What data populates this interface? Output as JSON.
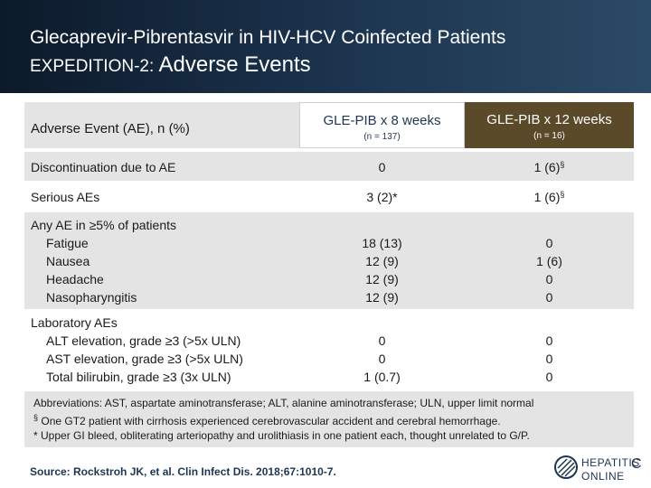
{
  "header": {
    "title": "Glecaprevir-Pibrentasvir in HIV-HCV Coinfected Patients",
    "subtitle_prefix": "EXPEDITION-2: ",
    "subtitle_main": "Adverse Events"
  },
  "table": {
    "row_header": "Adverse Event (AE), n (%)",
    "columns": [
      {
        "title": "GLE-PIB x 8 weeks",
        "n": "(n = 137)"
      },
      {
        "title": "GLE-PIB x 12 weeks",
        "n": "(n = 16)"
      }
    ],
    "discontinuation": {
      "label": "Discontinuation due to AE",
      "v8": "0",
      "v12": "1 (6)",
      "v12_mark": "§"
    },
    "serious": {
      "label": "Serious AEs",
      "v8": "3 (2)*",
      "v12": "1 (6)",
      "v12_mark": "§"
    },
    "any_ae": {
      "label": "Any AE in ≥5% of patients",
      "items": [
        {
          "label": "Fatigue",
          "v8": "18 (13)",
          "v12": "0"
        },
        {
          "label": "Nausea",
          "v8": "12 (9)",
          "v12": "1 (6)"
        },
        {
          "label": "Headache",
          "v8": "12 (9)",
          "v12": "0"
        },
        {
          "label": "Nasopharyngitis",
          "v8": "12 (9)",
          "v12": "0"
        }
      ]
    },
    "lab": {
      "label": "Laboratory AEs",
      "items": [
        {
          "label": "ALT elevation, grade ≥3 (>5x ULN)",
          "v8": "0",
          "v12": "0"
        },
        {
          "label": "AST elevation, grade ≥3 (>5x ULN)",
          "v8": "0",
          "v12": "0"
        },
        {
          "label": "Total bilirubin, grade ≥3 (3x ULN)",
          "v8": "1 (0.7)",
          "v12": "0"
        }
      ]
    }
  },
  "notes": {
    "abbrev": "Abbreviations: AST, aspartate aminotransferase; ALT, alanine aminotransferase; ULN, upper limit normal",
    "section_mark": "§",
    "section_note": "One GT2 patient with cirrhosis experienced cerebrovascular accident and cerebral hemorrhage.",
    "star_note": "* Upper GI bleed, obliterating arteriopathy and urolithiasis in one patient each, thought unrelated to G/P."
  },
  "source": "Source: Rockstroh JK, et al. Clin Infect Dis. 2018;67:1010-7.",
  "logo": {
    "line1": "HEPATITIS",
    "letter": "C",
    "line2": "ONLINE"
  },
  "colors": {
    "header_dark": "#0c1a2a",
    "header_light": "#2b4a66",
    "col12_bg": "#5a4a2a",
    "row_shade": "#e4e4e4",
    "navy": "#1d3550"
  }
}
